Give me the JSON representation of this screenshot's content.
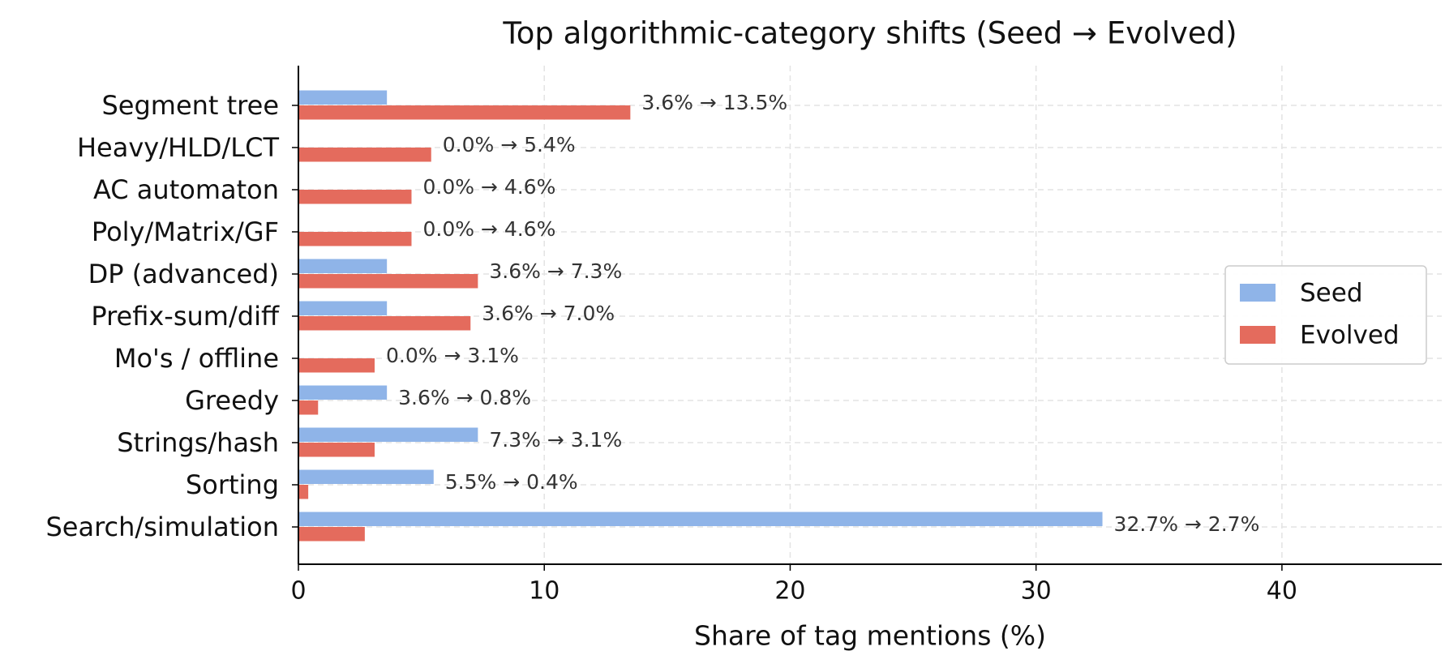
{
  "chart_data": {
    "type": "bar",
    "orientation": "horizontal",
    "title": "Top algorithmic-category shifts (Seed → Evolved)",
    "x_label": "Share of tag mentions (%)",
    "categories": [
      "Segment tree",
      "Heavy/HLD/LCT",
      "AC automaton",
      "Poly/Matrix/GF",
      "DP (advanced)",
      "Prefix-sum/diff",
      "Mo's / offline",
      "Greedy",
      "Strings/hash",
      "Sorting",
      "Search/simulation"
    ],
    "series": [
      {
        "name": "Seed",
        "color": "#8fb4e8",
        "values": [
          3.6,
          0.0,
          0.0,
          0.0,
          3.6,
          3.6,
          0.0,
          3.6,
          7.3,
          5.5,
          32.7
        ]
      },
      {
        "name": "Evolved",
        "color": "#e46b5d",
        "values": [
          13.5,
          5.4,
          4.6,
          4.6,
          7.3,
          7.0,
          3.1,
          0.8,
          3.1,
          0.4,
          2.7
        ]
      }
    ],
    "shift_labels": [
      "3.6% → 13.5%",
      "0.0% → 5.4%",
      "0.0% → 4.6%",
      "0.0% → 4.6%",
      "3.6% → 7.3%",
      "3.6% → 7.0%",
      "0.0% → 3.1%",
      "3.6% → 0.8%",
      "7.3% → 3.1%",
      "5.5% → 0.4%",
      "32.7% → 2.7%"
    ],
    "xlim": [
      0,
      46.5
    ],
    "xticks": [
      0,
      10,
      20,
      30,
      40
    ],
    "grid": true,
    "legend": "right"
  }
}
